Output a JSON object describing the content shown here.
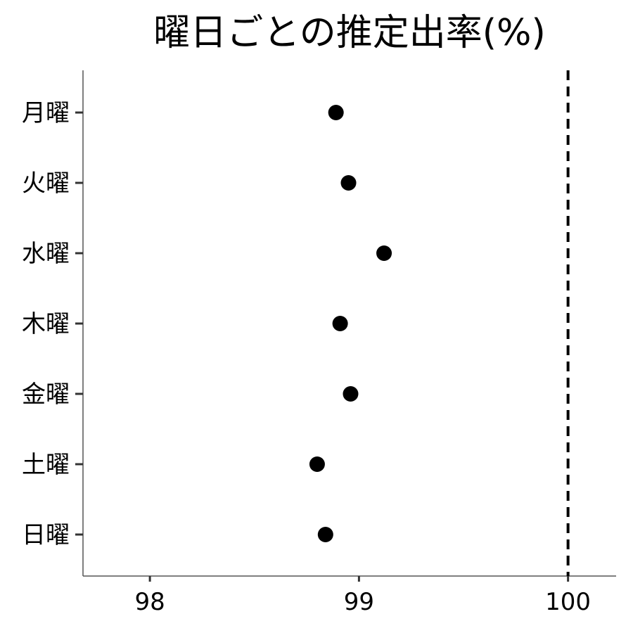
{
  "chart_data": {
    "type": "scatter",
    "title": "曜日ごとの推定出率(%)",
    "xlabel": "",
    "ylabel": "",
    "xlim": [
      97.68,
      100.23
    ],
    "xticks": [
      98,
      99,
      100
    ],
    "categories": [
      "月曜",
      "火曜",
      "水曜",
      "木曜",
      "金曜",
      "土曜",
      "日曜"
    ],
    "values": [
      98.89,
      98.95,
      99.12,
      98.91,
      98.96,
      98.8,
      98.84
    ],
    "reference_line": {
      "x": 100,
      "style": "dashed"
    },
    "grid": false
  }
}
